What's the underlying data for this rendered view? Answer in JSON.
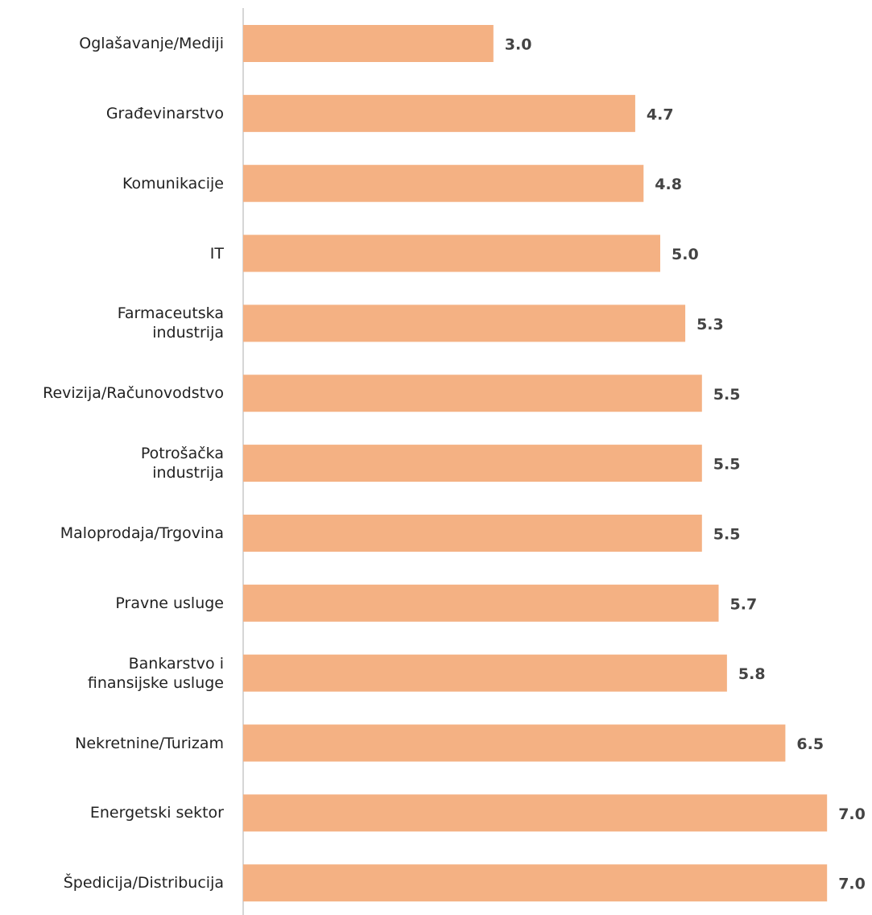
{
  "chart_data": {
    "type": "bar",
    "orientation": "horizontal",
    "color": "#f4b183",
    "categories": [
      "Oglašavanje/Mediji",
      "Građevinarstvo",
      "Komunikacije",
      "IT",
      "Farmaceutska\nindustrija",
      "Revizija/Računovodstvo",
      "Potrošačka\nindustrija",
      "Maloprodaja/Trgovina",
      "Pravne usluge",
      "Bankarstvo i\nfinansijske usluge",
      "Nekretnine/Turizam",
      "Energetski sektor",
      "Špedicija/Distribucija"
    ],
    "values": [
      3,
      4.7,
      4.8,
      5,
      5.3,
      5.5,
      5.5,
      5.5,
      5.7,
      5.8,
      6.5,
      7,
      7
    ],
    "value_labels": [
      "3.0",
      "4.7",
      "4.8",
      "5.0",
      "5.3",
      "5.5",
      "5.5",
      "5.5",
      "5.7",
      "5.8",
      "6.5",
      "7.0",
      "7.0"
    ]
  }
}
